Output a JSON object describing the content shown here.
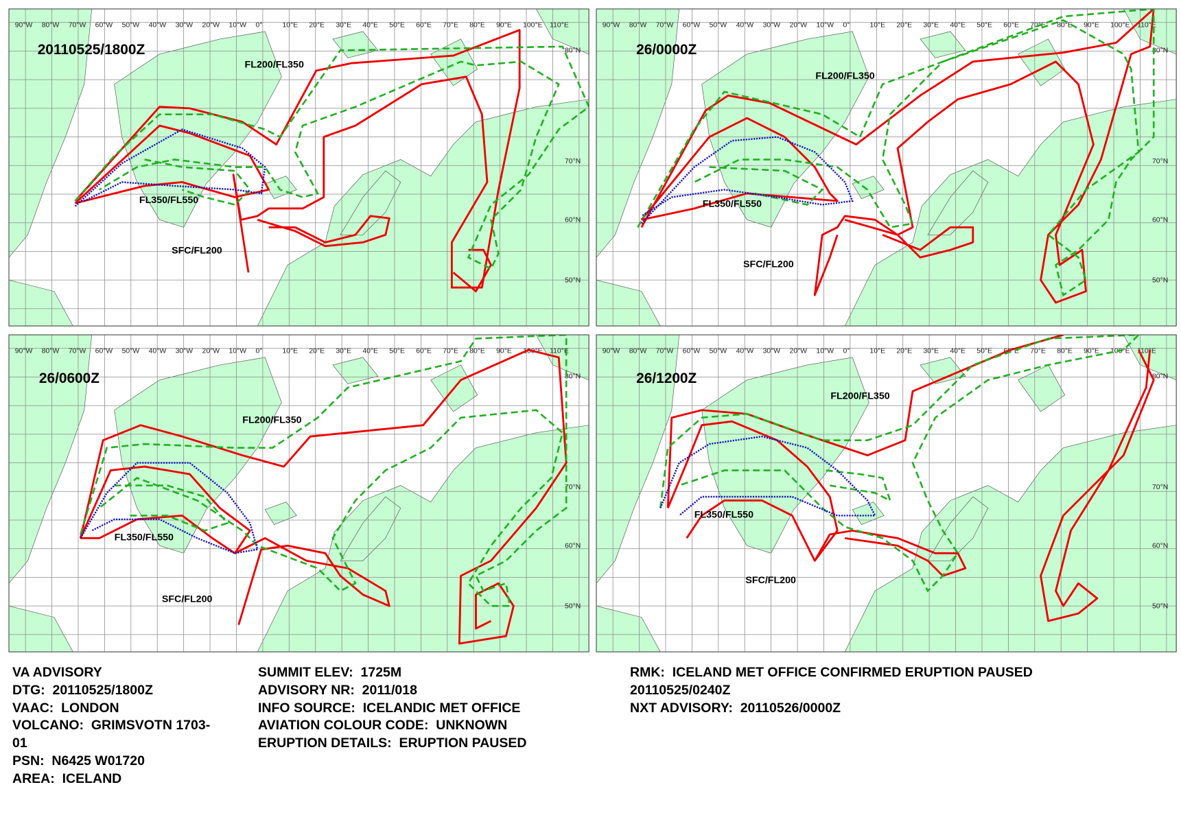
{
  "panels": [
    {
      "title": "20110525/1800Z",
      "labels": [
        "FL200/FL350",
        "FL350/FL550",
        "SFC/FL200"
      ]
    },
    {
      "title": "26/0000Z",
      "labels": [
        "FL200/FL350",
        "FL350/FL550",
        "SFC/FL200"
      ]
    },
    {
      "title": "26/0600Z",
      "labels": [
        "FL200/FL350",
        "FL350/FL550",
        "SFC/FL200"
      ]
    },
    {
      "title": "26/1200Z",
      "labels": [
        "FL200/FL350",
        "FL350/FL550",
        "SFC/FL200"
      ]
    }
  ],
  "longitude_labels": [
    "90°W",
    "80°W",
    "70°W",
    "60°W",
    "50°W",
    "40°W",
    "30°W",
    "20°W",
    "10°W",
    "0°",
    "10°E",
    "20°E",
    "30°E",
    "40°E",
    "50°E",
    "60°E",
    "70°E",
    "80°E",
    "90°E",
    "100°E",
    "110°E"
  ],
  "latitude_labels": [
    "80°N",
    "70°N",
    "60°N",
    "50°N"
  ],
  "advisory": {
    "column_1": [
      "VA ADVISORY",
      "DTG:  20110525/1800Z",
      "VAAC:  LONDON",
      "VOLCANO:  GRIMSVOTN 1703-",
      "01",
      "PSN:  N6425 W01720",
      "AREA:  ICELAND"
    ],
    "column_2": [
      "SUMMIT ELEV:  1725M",
      "ADVISORY NR:  2011/018",
      "INFO SOURCE:  ICELANDIC MET OFFICE",
      "AVIATION COLOUR CODE:  UNKNOWN",
      "ERUPTION DETAILS:  ERUPTION PAUSED"
    ],
    "column_3": [
      "RMK:  ICELAND MET OFFICE CONFIRMED ERUPTION PAUSED",
      "20110525/0240Z",
      "NXT ADVISORY:  20110526/0000Z"
    ]
  }
}
